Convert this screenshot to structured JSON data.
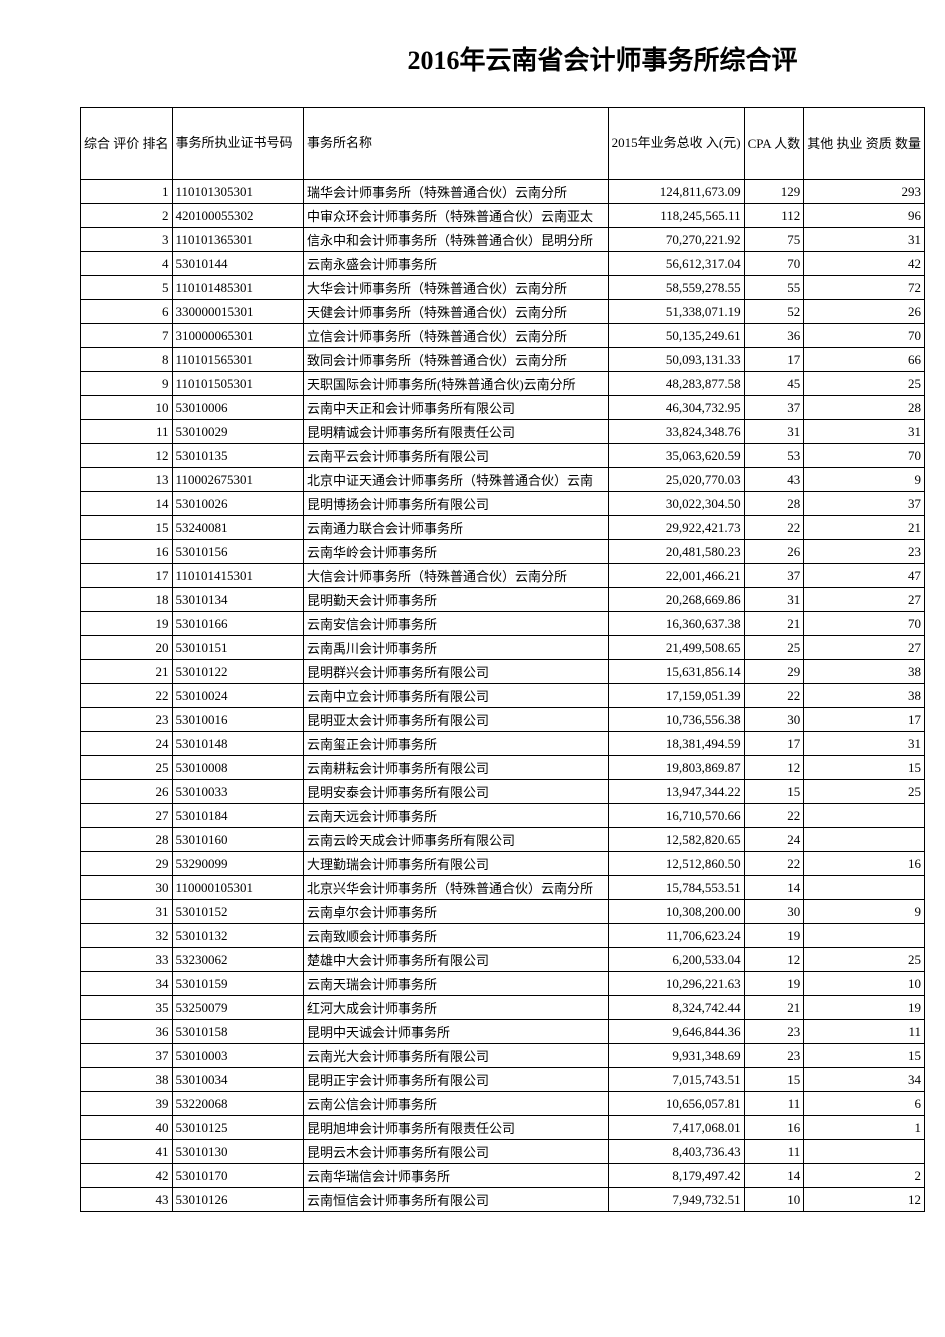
{
  "title": "2016年云南省会计师事务所综合评",
  "table": {
    "headers": {
      "rank": "综合\n评价\n排名",
      "license": "事务所执业证书号码",
      "name": "事务所名称",
      "income": "2015年业务总收\n入(元)",
      "cpa": "CPA\n人数",
      "other": "其他\n执业\n资质\n数量"
    },
    "rows": [
      {
        "rank": "1",
        "license": "110101305301",
        "name": "瑞华会计师事务所（特殊普通合伙）云南分所",
        "income": "124,811,673.09",
        "cpa": "129",
        "other": "293"
      },
      {
        "rank": "2",
        "license": "420100055302",
        "name": "中审众环会计师事务所（特殊普通合伙）云南亚太",
        "income": "118,245,565.11",
        "cpa": "112",
        "other": "96"
      },
      {
        "rank": "3",
        "license": "110101365301",
        "name": "信永中和会计师事务所（特殊普通合伙）昆明分所",
        "income": "70,270,221.92",
        "cpa": "75",
        "other": "31"
      },
      {
        "rank": "4",
        "license": "53010144",
        "name": "云南永盛会计师事务所",
        "income": "56,612,317.04",
        "cpa": "70",
        "other": "42"
      },
      {
        "rank": "5",
        "license": "110101485301",
        "name": "大华会计师事务所（特殊普通合伙）云南分所",
        "income": "58,559,278.55",
        "cpa": "55",
        "other": "72"
      },
      {
        "rank": "6",
        "license": "330000015301",
        "name": "天健会计师事务所（特殊普通合伙）云南分所",
        "income": "51,338,071.19",
        "cpa": "52",
        "other": "26"
      },
      {
        "rank": "7",
        "license": "310000065301",
        "name": "立信会计师事务所（特殊普通合伙）云南分所",
        "income": "50,135,249.61",
        "cpa": "36",
        "other": "70"
      },
      {
        "rank": "8",
        "license": "110101565301",
        "name": "致同会计师事务所（特殊普通合伙）云南分所",
        "income": "50,093,131.33",
        "cpa": "17",
        "other": "66"
      },
      {
        "rank": "9",
        "license": "110101505301",
        "name": "天职国际会计师事务所(特殊普通合伙)云南分所",
        "income": "48,283,877.58",
        "cpa": "45",
        "other": "25"
      },
      {
        "rank": "10",
        "license": "53010006",
        "name": "云南中天正和会计师事务所有限公司",
        "income": "46,304,732.95",
        "cpa": "37",
        "other": "28"
      },
      {
        "rank": "11",
        "license": "53010029",
        "name": "昆明精诚会计师事务所有限责任公司",
        "income": "33,824,348.76",
        "cpa": "31",
        "other": "31"
      },
      {
        "rank": "12",
        "license": "53010135",
        "name": "云南平云会计师事务所有限公司",
        "income": "35,063,620.59",
        "cpa": "53",
        "other": "70"
      },
      {
        "rank": "13",
        "license": "110002675301",
        "name": "北京中证天通会计师事务所（特殊普通合伙）云南",
        "income": "25,020,770.03",
        "cpa": "43",
        "other": "9"
      },
      {
        "rank": "14",
        "license": "53010026",
        "name": "昆明博扬会计师事务所有限公司",
        "income": "30,022,304.50",
        "cpa": "28",
        "other": "37"
      },
      {
        "rank": "15",
        "license": "53240081",
        "name": "云南通力联合会计师事务所",
        "income": "29,922,421.73",
        "cpa": "22",
        "other": "21"
      },
      {
        "rank": "16",
        "license": "53010156",
        "name": "云南华岭会计师事务所",
        "income": "20,481,580.23",
        "cpa": "26",
        "other": "23"
      },
      {
        "rank": "17",
        "license": "110101415301",
        "name": "大信会计师事务所（特殊普通合伙）云南分所",
        "income": "22,001,466.21",
        "cpa": "37",
        "other": "47"
      },
      {
        "rank": "18",
        "license": "53010134",
        "name": "昆明勤天会计师事务所",
        "income": "20,268,669.86",
        "cpa": "31",
        "other": "27"
      },
      {
        "rank": "19",
        "license": "53010166",
        "name": "云南安信会计师事务所",
        "income": "16,360,637.38",
        "cpa": "21",
        "other": "70"
      },
      {
        "rank": "20",
        "license": "53010151",
        "name": "云南禹川会计师事务所",
        "income": "21,499,508.65",
        "cpa": "25",
        "other": "27"
      },
      {
        "rank": "21",
        "license": "53010122",
        "name": "昆明群兴会计师事务所有限公司",
        "income": "15,631,856.14",
        "cpa": "29",
        "other": "38"
      },
      {
        "rank": "22",
        "license": "53010024",
        "name": "云南中立会计师事务所有限公司",
        "income": "17,159,051.39",
        "cpa": "22",
        "other": "38"
      },
      {
        "rank": "23",
        "license": "53010016",
        "name": "昆明亚太会计师事务所有限公司",
        "income": "10,736,556.38",
        "cpa": "30",
        "other": "17"
      },
      {
        "rank": "24",
        "license": "53010148",
        "name": "云南玺正会计师事务所",
        "income": "18,381,494.59",
        "cpa": "17",
        "other": "31"
      },
      {
        "rank": "25",
        "license": "53010008",
        "name": "云南耕耘会计师事务所有限公司",
        "income": "19,803,869.87",
        "cpa": "12",
        "other": "15"
      },
      {
        "rank": "26",
        "license": "53010033",
        "name": "昆明安泰会计师事务所有限公司",
        "income": "13,947,344.22",
        "cpa": "15",
        "other": "25"
      },
      {
        "rank": "27",
        "license": "53010184",
        "name": "云南天远会计师事务所",
        "income": "16,710,570.66",
        "cpa": "22",
        "other": ""
      },
      {
        "rank": "28",
        "license": "53010160",
        "name": "云南云岭天成会计师事务所有限公司",
        "income": "12,582,820.65",
        "cpa": "24",
        "other": ""
      },
      {
        "rank": "29",
        "license": "53290099",
        "name": "大理勤瑞会计师事务所有限公司",
        "income": "12,512,860.50",
        "cpa": "22",
        "other": "16"
      },
      {
        "rank": "30",
        "license": "110000105301",
        "name": "北京兴华会计师事务所（特殊普通合伙）云南分所",
        "income": "15,784,553.51",
        "cpa": "14",
        "other": ""
      },
      {
        "rank": "31",
        "license": "53010152",
        "name": "云南卓尔会计师事务所",
        "income": "10,308,200.00",
        "cpa": "30",
        "other": "9"
      },
      {
        "rank": "32",
        "license": "53010132",
        "name": "云南致顺会计师事务所",
        "income": "11,706,623.24",
        "cpa": "19",
        "other": ""
      },
      {
        "rank": "33",
        "license": "53230062",
        "name": "楚雄中大会计师事务所有限公司",
        "income": "6,200,533.04",
        "cpa": "12",
        "other": "25"
      },
      {
        "rank": "34",
        "license": "53010159",
        "name": "云南天瑞会计师事务所",
        "income": "10,296,221.63",
        "cpa": "19",
        "other": "10"
      },
      {
        "rank": "35",
        "license": "53250079",
        "name": "红河大成会计师事务所",
        "income": "8,324,742.44",
        "cpa": "21",
        "other": "19"
      },
      {
        "rank": "36",
        "license": "53010158",
        "name": "昆明中天诚会计师事务所",
        "income": "9,646,844.36",
        "cpa": "23",
        "other": "11"
      },
      {
        "rank": "37",
        "license": "53010003",
        "name": "云南光大会计师事务所有限公司",
        "income": "9,931,348.69",
        "cpa": "23",
        "other": "15"
      },
      {
        "rank": "38",
        "license": "53010034",
        "name": "昆明正宇会计师事务所有限公司",
        "income": "7,015,743.51",
        "cpa": "15",
        "other": "34"
      },
      {
        "rank": "39",
        "license": "53220068",
        "name": "云南公信会计师事务所",
        "income": "10,656,057.81",
        "cpa": "11",
        "other": "6"
      },
      {
        "rank": "40",
        "license": "53010125",
        "name": "昆明旭坤会计师事务所有限责任公司",
        "income": "7,417,068.01",
        "cpa": "16",
        "other": "1"
      },
      {
        "rank": "41",
        "license": "53010130",
        "name": "昆明云木会计师事务所有限公司",
        "income": "8,403,736.43",
        "cpa": "11",
        "other": ""
      },
      {
        "rank": "42",
        "license": "53010170",
        "name": "云南华瑞信会计师事务所",
        "income": "8,179,497.42",
        "cpa": "14",
        "other": "2"
      },
      {
        "rank": "43",
        "license": "53010126",
        "name": "云南恒信会计师事务所有限公司",
        "income": "7,949,732.51",
        "cpa": "10",
        "other": "12"
      }
    ]
  }
}
